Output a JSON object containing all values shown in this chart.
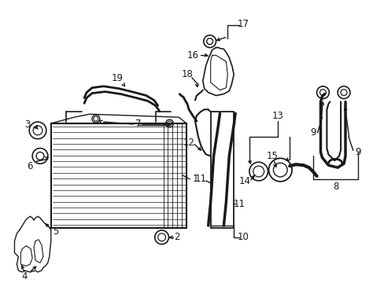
{
  "background_color": "#ffffff",
  "line_color": "#1a1a1a",
  "fig_width": 4.89,
  "fig_height": 3.6,
  "dpi": 100,
  "font_size": 8.5
}
